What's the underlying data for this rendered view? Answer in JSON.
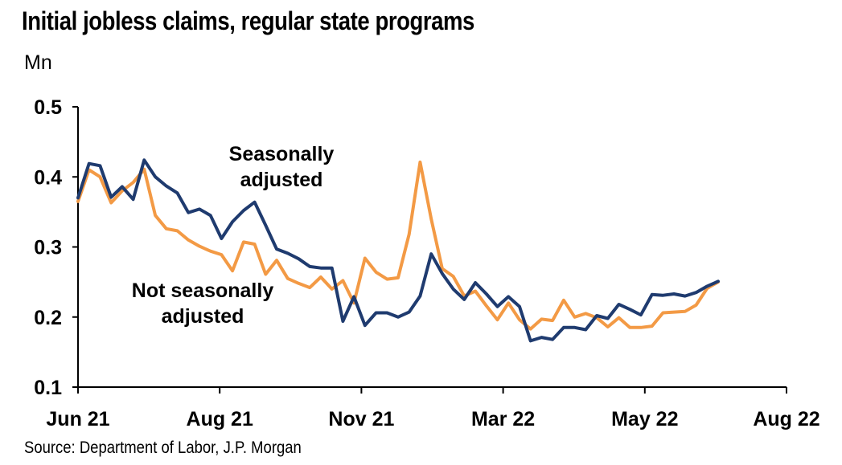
{
  "title": "Initial jobless claims, regular state programs",
  "unit_label": "Mn",
  "source": "Source: Department of Labor, J.P. Morgan",
  "chart_data": {
    "type": "line",
    "title": "Initial jobless claims, regular state programs",
    "ylabel": "Mn",
    "ylim": [
      0.1,
      0.5
    ],
    "yticks": [
      "0.1",
      "0.2",
      "0.3",
      "0.4",
      "0.5"
    ],
    "xticks": [
      "Jun 21",
      "Aug 21",
      "Nov 21",
      "Mar 22",
      "May 22",
      "Aug 22"
    ],
    "grid": false,
    "series": [
      {
        "name": "Seasonally adjusted",
        "color": "#1f3b6f",
        "values": [
          0.37,
          0.419,
          0.416,
          0.371,
          0.386,
          0.368,
          0.424,
          0.4,
          0.387,
          0.377,
          0.349,
          0.354,
          0.345,
          0.312,
          0.336,
          0.352,
          0.364,
          0.331,
          0.297,
          0.291,
          0.283,
          0.272,
          0.27,
          0.27,
          0.194,
          0.229,
          0.188,
          0.206,
          0.206,
          0.2,
          0.207,
          0.23,
          0.29,
          0.262,
          0.24,
          0.225,
          0.249,
          0.233,
          0.215,
          0.229,
          0.215,
          0.166,
          0.171,
          0.168,
          0.185,
          0.185,
          0.182,
          0.202,
          0.198,
          0.218,
          0.211,
          0.203,
          0.232,
          0.231,
          0.233,
          0.23,
          0.235,
          0.244,
          0.251
        ]
      },
      {
        "name": "Not seasonally adjusted",
        "color": "#f39a45",
        "values": [
          0.365,
          0.41,
          0.4,
          0.363,
          0.38,
          0.392,
          0.411,
          0.345,
          0.326,
          0.323,
          0.31,
          0.301,
          0.294,
          0.289,
          0.266,
          0.307,
          0.304,
          0.261,
          0.281,
          0.255,
          0.248,
          0.242,
          0.257,
          0.24,
          0.252,
          0.22,
          0.284,
          0.264,
          0.254,
          0.256,
          0.318,
          0.421,
          0.34,
          0.269,
          0.258,
          0.23,
          0.237,
          0.216,
          0.196,
          0.22,
          0.196,
          0.183,
          0.197,
          0.195,
          0.224,
          0.2,
          0.205,
          0.199,
          0.186,
          0.199,
          0.185,
          0.185,
          0.187,
          0.206,
          0.207,
          0.208,
          0.217,
          0.241,
          0.25
        ]
      }
    ],
    "annotations": [
      {
        "lines": [
          "Seasonally",
          "adjusted"
        ]
      },
      {
        "lines": [
          "Not seasonally",
          "adjusted"
        ]
      }
    ]
  }
}
